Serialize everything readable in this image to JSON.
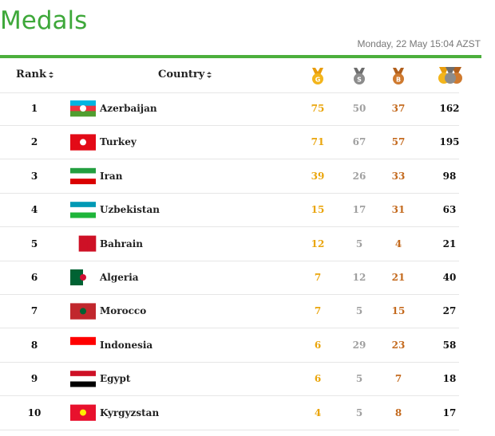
{
  "header": {
    "title": "Medals",
    "timestamp": "Monday, 22 May 15:04 AZST"
  },
  "table": {
    "columns": [
      "Rank",
      "Country"
    ],
    "medal_letters": [
      "G",
      "S",
      "B"
    ],
    "rows": [
      [
        "1",
        "Azerbaijan",
        "75",
        "50",
        "37",
        "162"
      ],
      [
        "2",
        "Turkey",
        "71",
        "67",
        "57",
        "195"
      ],
      [
        "3",
        "Iran",
        "39",
        "26",
        "33",
        "98"
      ],
      [
        "4",
        "Uzbekistan",
        "15",
        "17",
        "31",
        "63"
      ],
      [
        "5",
        "Bahrain",
        "12",
        "5",
        "4",
        "21"
      ],
      [
        "6",
        "Algeria",
        "7",
        "12",
        "21",
        "40"
      ],
      [
        "7",
        "Morocco",
        "7",
        "5",
        "15",
        "27"
      ],
      [
        "8",
        "Indonesia",
        "6",
        "29",
        "23",
        "58"
      ],
      [
        "9",
        "Egypt",
        "6",
        "5",
        "7",
        "18"
      ],
      [
        "10",
        "Kyrgyzstan",
        "4",
        "5",
        "8",
        "17"
      ]
    ]
  }
}
